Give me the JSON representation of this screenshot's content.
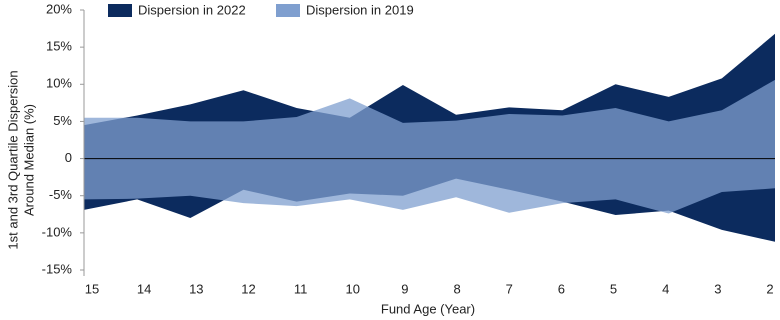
{
  "chart_data": {
    "type": "band",
    "categories": [
      "15",
      "14",
      "13",
      "12",
      "11",
      "10",
      "9",
      "8",
      "7",
      "6",
      "5",
      "4",
      "3",
      "2"
    ],
    "series": [
      {
        "name": "Dispersion in 2022",
        "color": "#0c2b5e",
        "upper": [
          4.5,
          5.8,
          7.3,
          9.2,
          6.8,
          5.5,
          9.9,
          5.9,
          6.9,
          6.5,
          10.0,
          8.3,
          10.8,
          16.8
        ],
        "lower": [
          -6.9,
          -5.5,
          -8.0,
          -4.2,
          -5.8,
          -4.7,
          -5.0,
          -2.7,
          -4.2,
          -5.8,
          -7.6,
          -7.0,
          -9.6,
          -11.2
        ]
      },
      {
        "name": "Dispersion in 2019",
        "color": "#7f9fcf",
        "upper": [
          5.5,
          5.5,
          5.0,
          5.0,
          5.6,
          8.1,
          4.8,
          5.1,
          6.0,
          5.8,
          6.8,
          5.0,
          6.5,
          10.6
        ],
        "lower": [
          -5.5,
          -5.4,
          -5.0,
          -6.0,
          -6.4,
          -5.5,
          -6.9,
          -5.2,
          -7.3,
          -6.0,
          -5.5,
          -7.4,
          -4.5,
          -4.0
        ]
      }
    ],
    "ylim": [
      -15,
      20
    ],
    "yticks": [
      {
        "value": -15,
        "label": "-15%"
      },
      {
        "value": -10,
        "label": "-10%"
      },
      {
        "value": -5,
        "label": "-5%"
      },
      0,
      {
        "value": 5,
        "label": "5%"
      },
      {
        "value": 10,
        "label": "10%"
      },
      {
        "value": 15,
        "label": "15%"
      },
      {
        "value": 20,
        "label": "20%"
      }
    ],
    "y_label": [
      "1st and 3rd Quartile Dispersion",
      "Around  Median (%)"
    ],
    "x_label": "Fund Age (Year)"
  }
}
